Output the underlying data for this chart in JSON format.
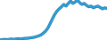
{
  "line_color": "#2e9fd8",
  "line_color_dark": "#1a6fa0",
  "line_width": 1.5,
  "background_color": "#ffffff",
  "y_values": [
    1.0,
    1.1,
    1.2,
    1.1,
    1.2,
    1.3,
    1.2,
    1.3,
    1.4,
    1.3,
    1.4,
    1.5,
    1.5,
    1.6,
    1.7,
    1.8,
    2.0,
    2.2,
    2.5,
    3.0,
    3.6,
    4.5,
    5.8,
    7.2,
    8.5,
    9.5,
    10.2,
    10.8,
    11.5,
    11.0,
    11.8,
    12.5,
    11.8,
    12.2,
    12.8,
    12.0,
    11.5,
    11.8,
    11.2,
    10.8,
    11.0,
    10.5,
    10.8,
    11.0,
    10.6,
    10.2,
    10.5,
    10.3
  ]
}
